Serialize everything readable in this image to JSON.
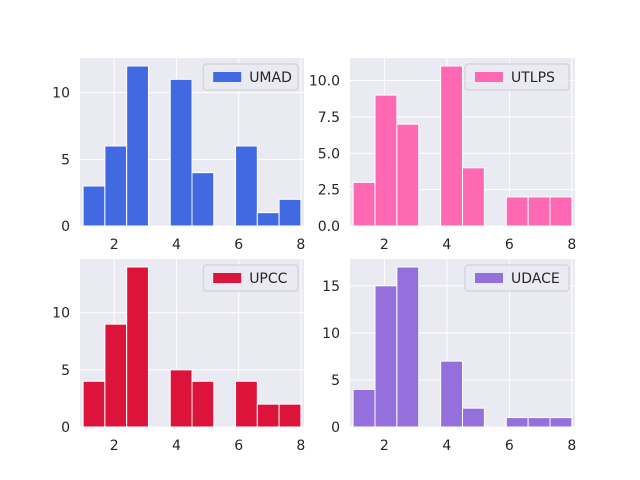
{
  "chart_data": [
    {
      "type": "bar",
      "position": "top-left",
      "x": [
        1.35,
        2.05,
        2.75,
        4.15,
        4.85,
        6.25,
        6.95,
        7.65
      ],
      "values": [
        3,
        6,
        12,
        11,
        4,
        6,
        1,
        2
      ],
      "bin_width": 0.7,
      "color": "#4169E1",
      "legend": {
        "label": "UMAD",
        "placement": "upper right"
      },
      "xlim": [
        0.9,
        8.1
      ],
      "ylim": [
        0,
        12.6
      ],
      "xticks": [
        2,
        4,
        6,
        8
      ],
      "yticks": [
        0,
        5,
        10
      ],
      "ytick_labels": [
        "0",
        "5",
        "10"
      ],
      "grid": true
    },
    {
      "type": "bar",
      "position": "top-right",
      "x": [
        1.35,
        2.05,
        2.75,
        4.15,
        4.85,
        6.25,
        6.95,
        7.65
      ],
      "values": [
        3,
        9,
        7,
        11,
        4,
        2,
        2,
        2
      ],
      "bin_width": 0.7,
      "color": "#FF69B4",
      "legend": {
        "label": "UTLPS",
        "placement": "upper right"
      },
      "xlim": [
        0.9,
        8.1
      ],
      "ylim": [
        0,
        11.55
      ],
      "xticks": [
        2,
        4,
        6,
        8
      ],
      "yticks": [
        0,
        2.5,
        5,
        7.5,
        10
      ],
      "ytick_labels": [
        "0.0",
        "2.5",
        "5.0",
        "7.5",
        "10.0"
      ],
      "grid": true
    },
    {
      "type": "bar",
      "position": "bottom-left",
      "x": [
        1.35,
        2.05,
        2.75,
        4.15,
        4.85,
        6.25,
        6.95,
        7.65
      ],
      "values": [
        4,
        9,
        14,
        5,
        4,
        4,
        2,
        2
      ],
      "bin_width": 0.7,
      "color": "#DC143C",
      "legend": {
        "label": "UPCC",
        "placement": "upper right"
      },
      "xlim": [
        0.9,
        8.1
      ],
      "ylim": [
        0,
        14.7
      ],
      "xticks": [
        2,
        4,
        6,
        8
      ],
      "yticks": [
        0,
        5,
        10
      ],
      "ytick_labels": [
        "0",
        "5",
        "10"
      ],
      "grid": true
    },
    {
      "type": "bar",
      "position": "bottom-right",
      "x": [
        1.35,
        2.05,
        2.75,
        4.15,
        4.85,
        6.25,
        6.95,
        7.65
      ],
      "values": [
        4,
        15,
        17,
        7,
        2,
        1,
        1,
        1
      ],
      "bin_width": 0.7,
      "color": "#9370DB",
      "legend": {
        "label": "UDACE",
        "placement": "upper right"
      },
      "xlim": [
        0.9,
        8.1
      ],
      "ylim": [
        0,
        17.85
      ],
      "xticks": [
        2,
        4,
        6,
        8
      ],
      "yticks": [
        0,
        5,
        10,
        15
      ],
      "ytick_labels": [
        "0",
        "5",
        "10",
        "15"
      ],
      "grid": true
    }
  ]
}
